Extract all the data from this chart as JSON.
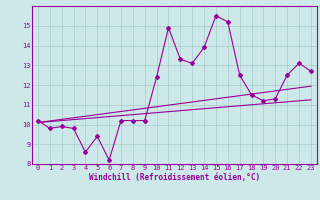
{
  "x_values": [
    0,
    1,
    2,
    3,
    4,
    5,
    6,
    7,
    8,
    9,
    10,
    11,
    12,
    13,
    14,
    15,
    16,
    17,
    18,
    19,
    20,
    21,
    22,
    23
  ],
  "y_main": [
    10.2,
    9.8,
    9.9,
    9.8,
    8.6,
    9.4,
    8.2,
    10.2,
    10.2,
    10.2,
    12.4,
    14.9,
    13.3,
    13.1,
    13.9,
    15.5,
    15.2,
    12.5,
    11.5,
    11.2,
    11.3,
    12.5,
    13.1,
    12.7
  ],
  "y_trend1": [
    10.1,
    10.18,
    10.26,
    10.34,
    10.42,
    10.5,
    10.58,
    10.66,
    10.74,
    10.82,
    10.9,
    10.98,
    11.06,
    11.14,
    11.22,
    11.3,
    11.38,
    11.46,
    11.54,
    11.62,
    11.7,
    11.78,
    11.86,
    11.94
  ],
  "y_trend2": [
    10.1,
    10.15,
    10.2,
    10.25,
    10.3,
    10.35,
    10.4,
    10.45,
    10.5,
    10.55,
    10.6,
    10.65,
    10.7,
    10.75,
    10.8,
    10.85,
    10.9,
    10.95,
    11.0,
    11.05,
    11.1,
    11.15,
    11.2,
    11.25
  ],
  "line_color": "#990099",
  "bg_color": "#cce8e8",
  "grid_color": "#aacccc",
  "xlabel": "Windchill (Refroidissement éolien,°C)",
  "ylim": [
    8,
    16
  ],
  "xlim": [
    -0.5,
    23.5
  ],
  "yticks": [
    8,
    9,
    10,
    11,
    12,
    13,
    14,
    15
  ],
  "xticks": [
    0,
    1,
    2,
    3,
    4,
    5,
    6,
    7,
    8,
    9,
    10,
    11,
    12,
    13,
    14,
    15,
    16,
    17,
    18,
    19,
    20,
    21,
    22,
    23
  ]
}
